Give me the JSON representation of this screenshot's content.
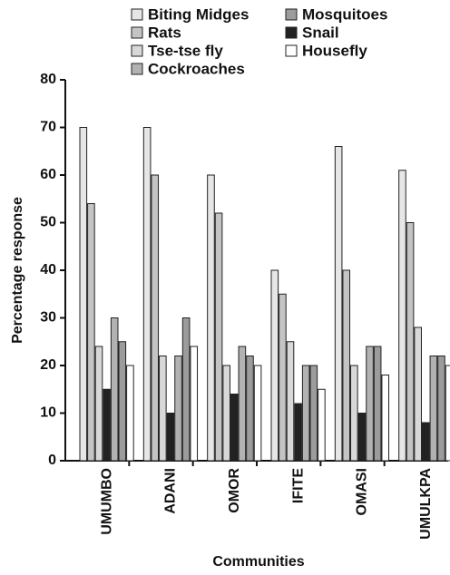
{
  "chart_data": {
    "type": "bar",
    "y_label": "Percentage response",
    "x_label": "Communities",
    "categories": [
      "UMUMBO",
      "ADANI",
      "OMOR",
      "IFITE",
      "OMASI",
      "UMULKPA"
    ],
    "series": [
      {
        "name": "Biting Midges",
        "color": "#e6e6e6",
        "values": [
          70,
          70,
          60,
          40,
          66,
          61
        ]
      },
      {
        "name": "Rats",
        "color": "#c4c4c4",
        "values": [
          54,
          60,
          52,
          35,
          40,
          50
        ]
      },
      {
        "name": "Tse-tse fly",
        "color": "#d8d8d8",
        "values": [
          24,
          22,
          20,
          25,
          20,
          28
        ]
      },
      {
        "name": "Snail",
        "color": "#222222",
        "values": [
          15,
          10,
          14,
          12,
          10,
          8
        ]
      },
      {
        "name": "Cockroaches",
        "color": "#b2b2b2",
        "values": [
          30,
          22,
          24,
          20,
          24,
          22
        ]
      },
      {
        "name": "Mosquitoes",
        "color": "#9c9c9c",
        "values": [
          25,
          30,
          22,
          20,
          24,
          22
        ]
      },
      {
        "name": "Housefly",
        "color": "#ffffff",
        "values": [
          20,
          24,
          20,
          15,
          18,
          20
        ]
      }
    ],
    "ylim": [
      0,
      80
    ],
    "yticks": [
      0,
      10,
      20,
      30,
      40,
      50,
      60,
      70,
      80
    ]
  }
}
